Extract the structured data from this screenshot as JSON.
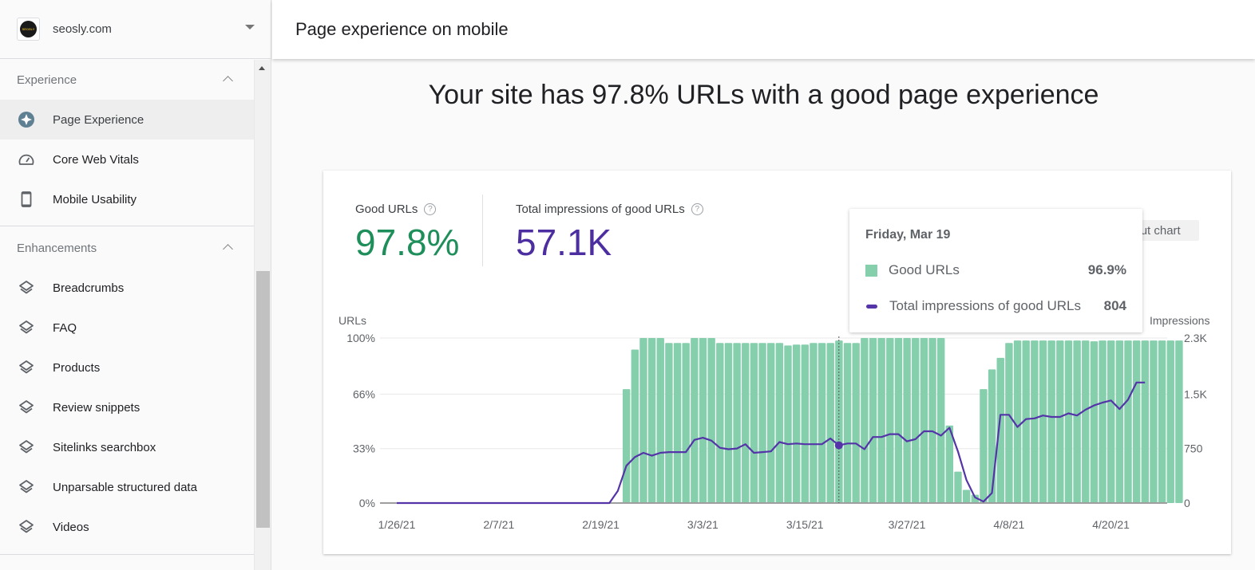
{
  "sidebar": {
    "property": {
      "name": "seosly.com",
      "logo_text": "SEOSLY"
    },
    "sections": [
      {
        "title": "Experience",
        "items": [
          {
            "label": "Page Experience",
            "icon": "page-experience-icon",
            "active": true
          },
          {
            "label": "Core Web Vitals",
            "icon": "speedometer-icon",
            "active": false
          },
          {
            "label": "Mobile Usability",
            "icon": "smartphone-icon",
            "active": false
          }
        ]
      },
      {
        "title": "Enhancements",
        "items": [
          {
            "label": "Breadcrumbs",
            "icon": "layers-icon"
          },
          {
            "label": "FAQ",
            "icon": "layers-icon"
          },
          {
            "label": "Products",
            "icon": "layers-icon"
          },
          {
            "label": "Review snippets",
            "icon": "layers-icon"
          },
          {
            "label": "Sitelinks searchbox",
            "icon": "layers-icon"
          },
          {
            "label": "Unparsable structured data",
            "icon": "layers-icon"
          },
          {
            "label": "Videos",
            "icon": "layers-icon"
          }
        ]
      }
    ]
  },
  "header": {
    "title": "Page experience on mobile"
  },
  "headline": "Your site has 97.8% URLs with a good page experience",
  "metrics": {
    "good_urls": {
      "label": "Good URLs",
      "value": "97.8%",
      "color": "#1e8e5a",
      "help": "?"
    },
    "impressions": {
      "label": "Total impressions of good URLs",
      "value": "57.1K",
      "color": "#4c2ea1",
      "help": "?"
    }
  },
  "about_chart": {
    "label": "About chart",
    "icon": "i"
  },
  "tooltip": {
    "date": "Friday, Mar 19",
    "rows": [
      {
        "label": "Good URLs",
        "value": "96.9%"
      },
      {
        "label": "Total impressions of good URLs",
        "value": "804"
      }
    ]
  },
  "colors": {
    "bar": "#86cfac",
    "line": "#5434a8",
    "good_value": "#1e8e5a",
    "impr_value": "#4c2ea1"
  },
  "chart_data": {
    "type": "bar",
    "title": "",
    "xlabel": "",
    "ylabel": "URLs",
    "y2label": "Impressions",
    "ylim": [
      0,
      100
    ],
    "y2lim": [
      0,
      2300
    ],
    "y_ticks": [
      "0%",
      "33%",
      "66%",
      "100%"
    ],
    "y2_ticks": [
      "0",
      "750",
      "1.5K",
      "2.3K"
    ],
    "x_ticks": [
      "1/26/21",
      "2/7/21",
      "2/19/21",
      "3/3/21",
      "3/15/21",
      "3/27/21",
      "4/8/21",
      "4/20/21"
    ],
    "start_date": "1/26/21",
    "grid": true,
    "legend": [
      "Good URLs",
      "Total impressions of good URLs"
    ],
    "highlight": {
      "date": "3/19/21",
      "good_urls_pct": 96.9,
      "impressions": 804
    },
    "series": [
      {
        "name": "Good URLs (%)",
        "type": "bar",
        "axis": "left",
        "offset_days": 27,
        "values": [
          69,
          93,
          100,
          100,
          100,
          97,
          97,
          97,
          100,
          100,
          100,
          97,
          97,
          97,
          97,
          97,
          97,
          97,
          97,
          95.5,
          96,
          96,
          97,
          97,
          97,
          98.5,
          97,
          97,
          100,
          100,
          100,
          100,
          100,
          100,
          100,
          100,
          100,
          100,
          47,
          19,
          8,
          5,
          69,
          81,
          88,
          97,
          98.5,
          98.5,
          98.5,
          98.5,
          98.5,
          98.5,
          98.5,
          98.5,
          98.5,
          98,
          98.5,
          98.5,
          98.5,
          98.5,
          98.5,
          98.5,
          98.5,
          98.5,
          98.5,
          98.5
        ]
      },
      {
        "name": "Total impressions of good URLs",
        "type": "line",
        "axis": "right",
        "offset_days": 0,
        "values": [
          0,
          0,
          0,
          0,
          0,
          0,
          0,
          0,
          0,
          0,
          0,
          0,
          0,
          0,
          0,
          0,
          0,
          0,
          0,
          0,
          0,
          0,
          0,
          0,
          0,
          0,
          170,
          520,
          640,
          700,
          660,
          700,
          710,
          710,
          710,
          880,
          910,
          870,
          770,
          750,
          760,
          820,
          700,
          710,
          720,
          850,
          820,
          830,
          820,
          820,
          820,
          900,
          804,
          830,
          830,
          750,
          920,
          920,
          960,
          960,
          860,
          890,
          1000,
          1000,
          940,
          1050,
          720,
          320,
          80,
          20,
          140,
          1230,
          1230,
          1060,
          1170,
          1180,
          1220,
          1200,
          1200,
          1250,
          1220,
          1300,
          1360,
          1400,
          1430,
          1310,
          1440,
          1680,
          1680
        ]
      }
    ]
  }
}
